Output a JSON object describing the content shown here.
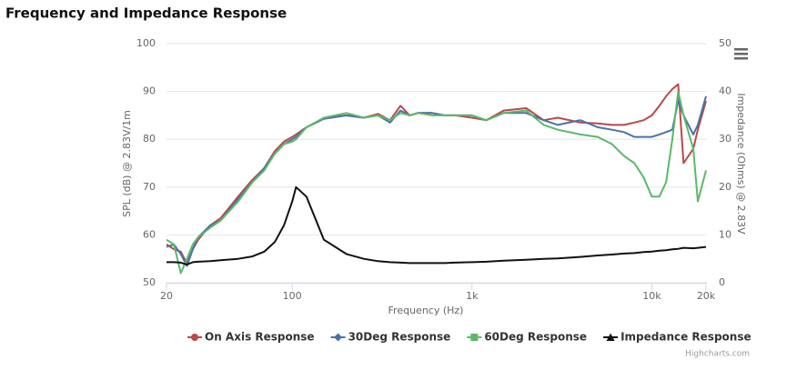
{
  "chart_data": {
    "type": "line",
    "title": "Frequency and Impedance Response",
    "x_label": "Frequency (Hz)",
    "y_label": "SPL (dB) @ 2.83V/1m",
    "y2_label": "Impedance (Ohms) @ 2.83V",
    "credit": "Highcharts.com",
    "xlog": true,
    "grid": true,
    "legend": "bottom",
    "x": [
      20,
      22,
      24,
      26,
      28,
      30,
      35,
      40,
      50,
      60,
      70,
      80,
      90,
      100,
      105,
      120,
      150,
      200,
      250,
      300,
      350,
      400,
      450,
      500,
      600,
      700,
      800,
      1000,
      1200,
      1500,
      2000,
      2500,
      3000,
      4000,
      5000,
      6000,
      7000,
      8000,
      9000,
      10000,
      11000,
      12000,
      13000,
      14000,
      15000,
      17000,
      18000,
      20000
    ],
    "xlim": [
      20,
      20000
    ],
    "xticks": [
      20,
      100,
      {
        "value": 1000,
        "label": "1k"
      },
      {
        "value": 10000,
        "label": "10k"
      },
      {
        "value": 20000,
        "label": "20k"
      }
    ],
    "ylim": [
      50,
      100
    ],
    "yticks": [
      50,
      60,
      70,
      80,
      90,
      100
    ],
    "y2lim": [
      0,
      50
    ],
    "y2ticks": [
      0,
      10,
      20,
      30,
      40,
      50
    ],
    "series": [
      {
        "name": "On Axis Response",
        "color": "#b84a4a",
        "marker": "circle",
        "values": [
          58,
          57,
          56.5,
          54,
          57,
          59,
          62,
          63.5,
          68,
          71.5,
          74,
          77.5,
          79.5,
          80.5,
          81,
          82.5,
          84.3,
          85,
          84.5,
          85.3,
          84,
          87,
          85,
          85.5,
          85.5,
          85,
          85,
          84.5,
          84,
          86,
          86.5,
          84,
          84.5,
          83.5,
          83.3,
          83,
          83,
          83.5,
          84,
          85,
          87,
          89,
          90.5,
          91.5,
          75,
          78,
          82,
          88
        ]
      },
      {
        "name": "30Deg Response",
        "color": "#4a72a8",
        "marker": "diamond",
        "values": [
          57.5,
          58,
          56,
          53.5,
          57,
          59.5,
          62,
          63,
          67.5,
          71,
          74,
          77,
          79,
          80,
          80.5,
          82.5,
          84.3,
          85,
          84.5,
          85,
          83.5,
          86,
          85,
          85.5,
          85.5,
          85,
          85,
          85,
          84,
          85.5,
          85.5,
          84,
          83,
          84,
          82.5,
          82,
          81.5,
          80.5,
          80.5,
          80.5,
          81,
          81.5,
          82,
          88,
          85,
          81,
          83,
          89
        ]
      },
      {
        "name": "60Deg Response",
        "color": "#5cb86a",
        "marker": "square",
        "values": [
          59,
          58,
          52,
          55,
          58,
          59.5,
          61.5,
          63,
          67,
          71,
          73.5,
          77,
          79,
          79.5,
          80,
          82.5,
          84.5,
          85.5,
          84.5,
          85,
          84,
          85.5,
          85,
          85.5,
          85,
          85,
          85,
          85,
          84,
          85.5,
          86,
          83,
          82,
          81,
          80.5,
          79,
          76.5,
          75,
          72,
          68,
          68,
          71,
          80,
          90,
          85,
          78,
          67,
          73.5
        ]
      },
      {
        "name": "Impedance Response",
        "color": "#111111",
        "marker": "triangle",
        "axis": "y2",
        "values": [
          4.3,
          4.3,
          4.2,
          3.8,
          4.3,
          4.4,
          4.5,
          4.7,
          5,
          5.5,
          6.5,
          8.5,
          12,
          17,
          20,
          18,
          9,
          6,
          5,
          4.5,
          4.3,
          4.2,
          4.1,
          4.1,
          4.1,
          4.1,
          4.2,
          4.3,
          4.4,
          4.6,
          4.8,
          5,
          5.1,
          5.4,
          5.7,
          5.9,
          6.1,
          6.2,
          6.4,
          6.5,
          6.7,
          6.8,
          7,
          7.1,
          7.3,
          7.2,
          7.3,
          7.5
        ]
      }
    ]
  }
}
